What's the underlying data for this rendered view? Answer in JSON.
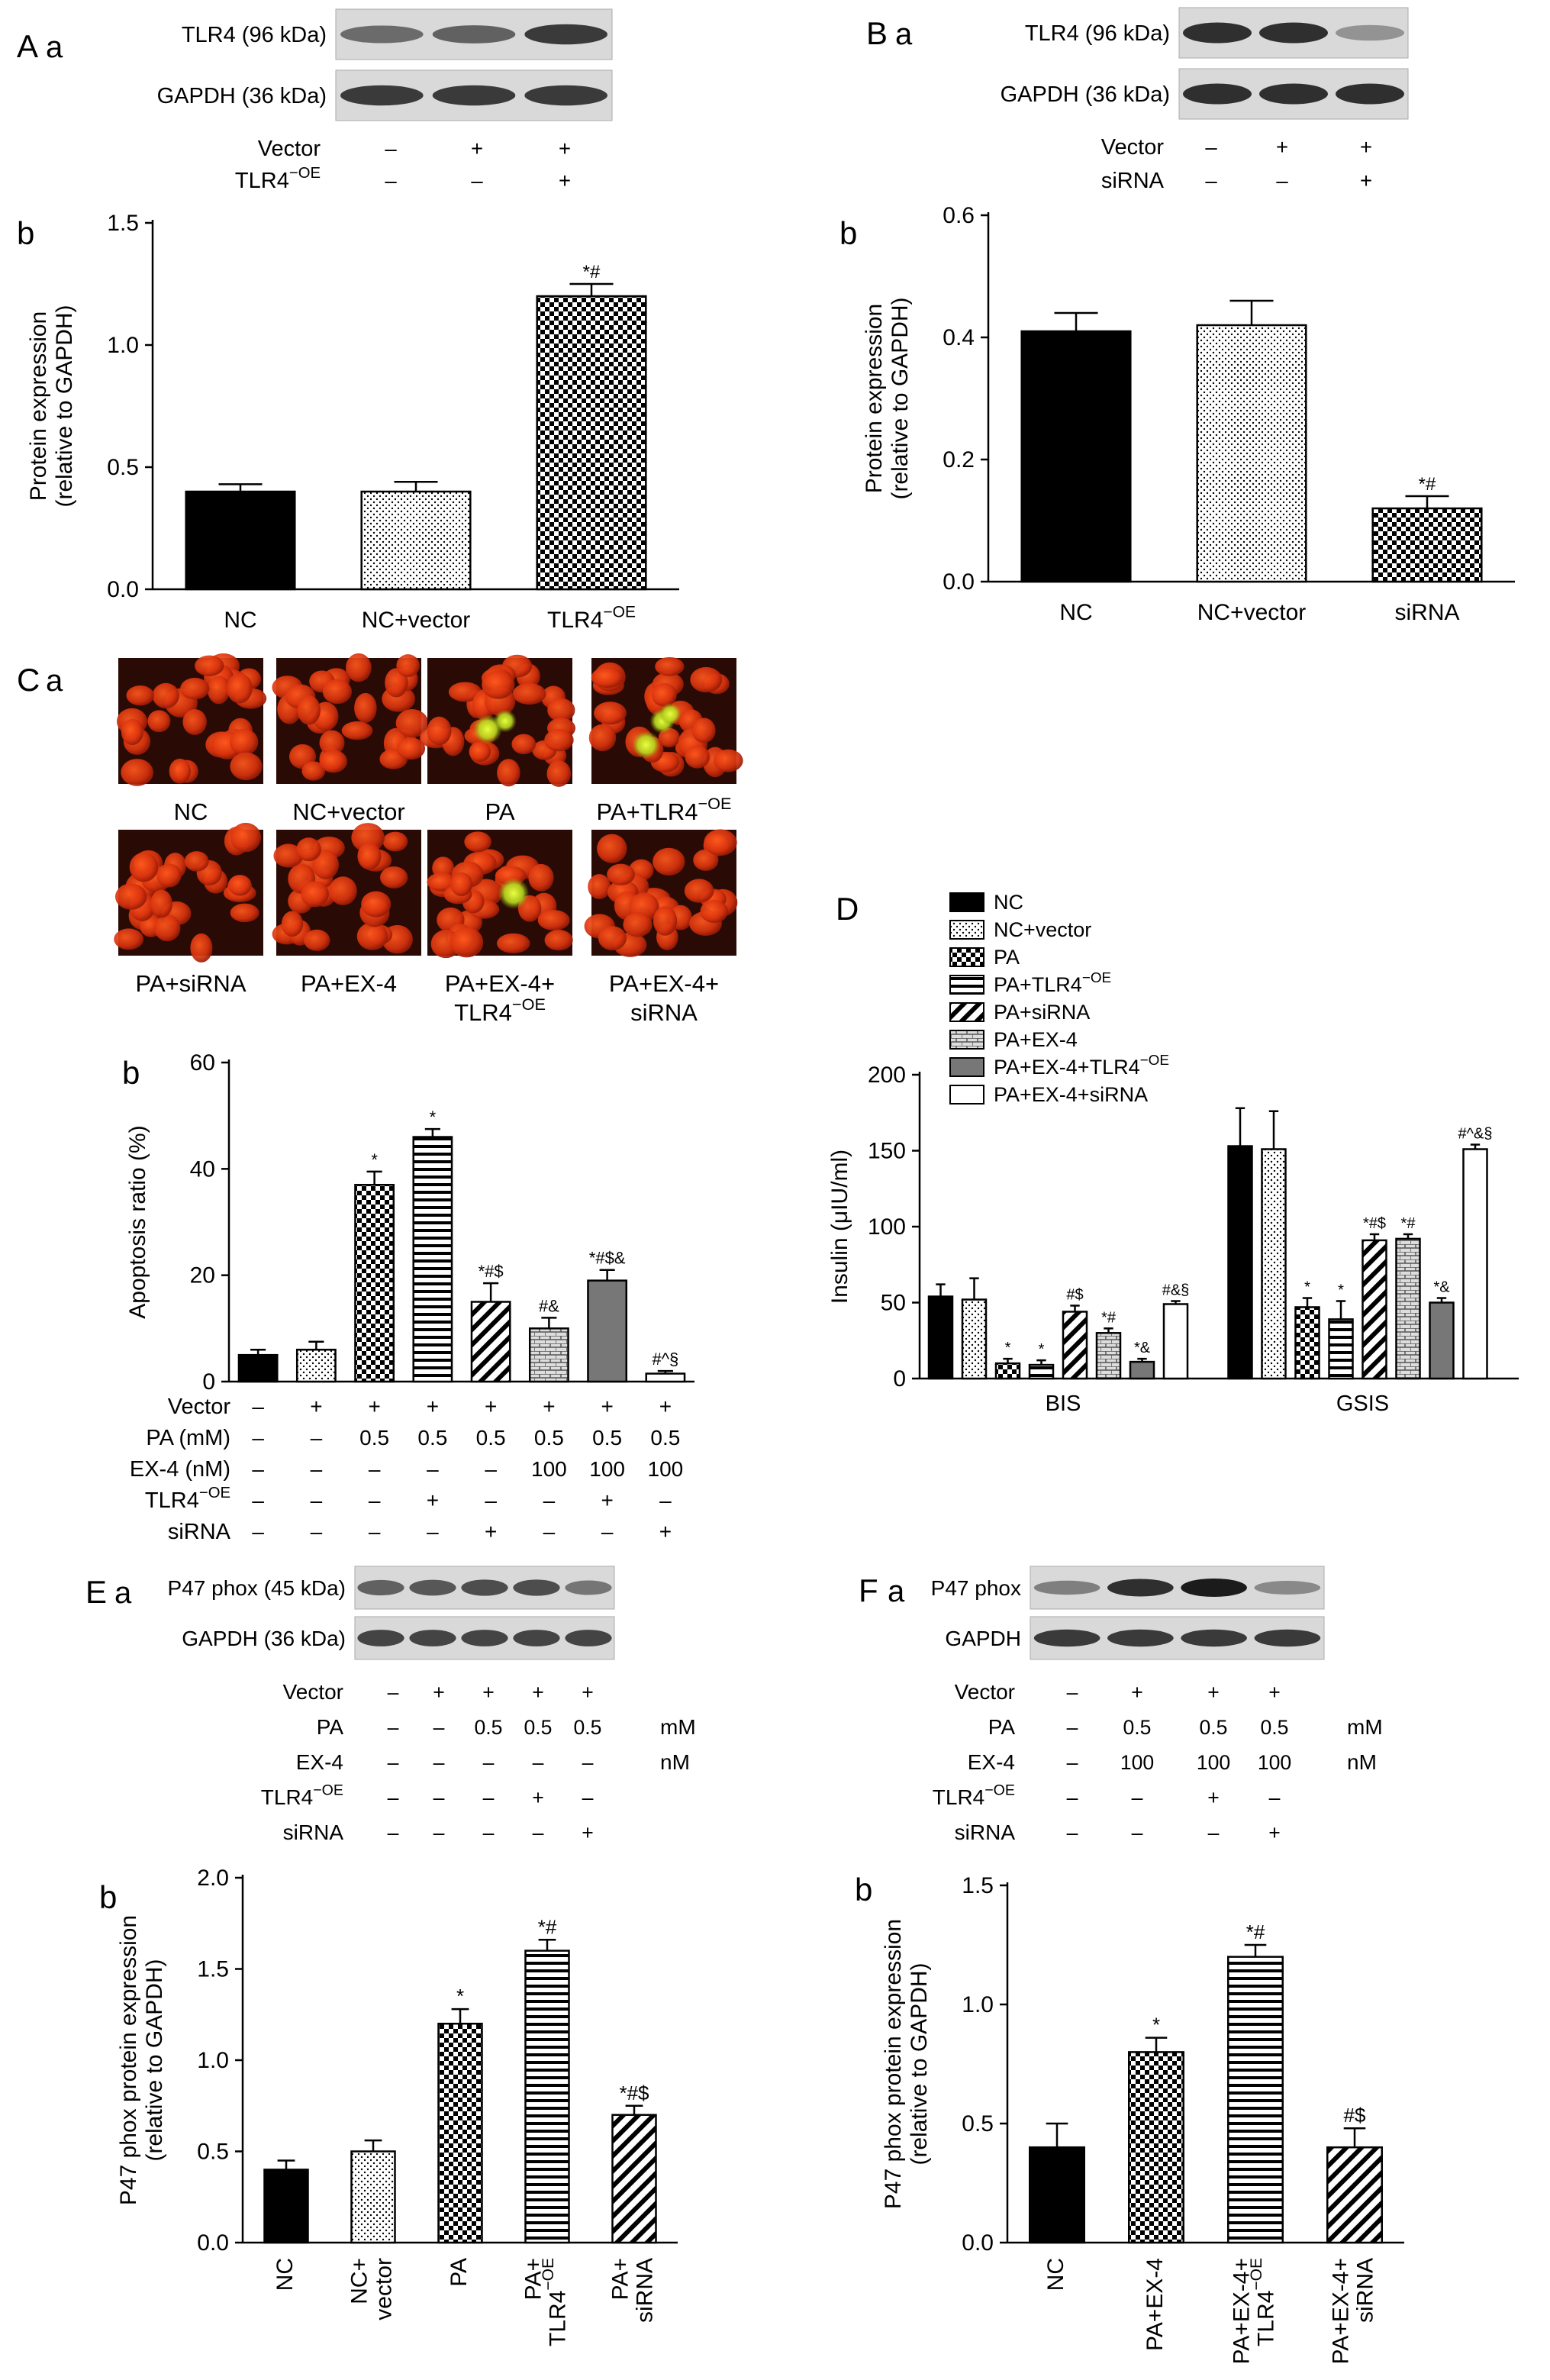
{
  "panel_labels": {
    "A": "A",
    "B": "B",
    "C": "C",
    "D": "D",
    "E": "E",
    "F": "F",
    "a": "a",
    "b": "b"
  },
  "symbols": {
    "plus": "+",
    "minus": "–",
    "sup_oe": "−OE"
  },
  "blots": {
    "A": {
      "bands": [
        {
          "label": "TLR4 (96 kDa)",
          "intensity": [
            0.55,
            0.6,
            0.8
          ]
        },
        {
          "label": "GAPDH (36 kDa)",
          "intensity": [
            0.8,
            0.8,
            0.8
          ]
        }
      ],
      "rows": [
        {
          "label": "Vector",
          "values": [
            "–",
            "+",
            "+"
          ]
        },
        {
          "label": "TLR4",
          "sup": "−OE",
          "values": [
            "–",
            "–",
            "+"
          ]
        }
      ]
    },
    "B": {
      "bands": [
        {
          "label": "TLR4 (96 kDa)",
          "intensity": [
            0.85,
            0.85,
            0.35
          ]
        },
        {
          "label": "GAPDH (36 kDa)",
          "intensity": [
            0.85,
            0.85,
            0.85
          ]
        }
      ],
      "rows": [
        {
          "label": "Vector",
          "values": [
            "–",
            "+",
            "+"
          ]
        },
        {
          "label": "siRNA",
          "values": [
            "–",
            "–",
            "+"
          ]
        }
      ]
    },
    "E": {
      "bands": [
        {
          "label": "P47 phox (45 kDa)",
          "intensity": [
            0.6,
            0.65,
            0.7,
            0.7,
            0.5
          ]
        },
        {
          "label": "GAPDH (36 kDa)",
          "intensity": [
            0.75,
            0.75,
            0.75,
            0.75,
            0.75
          ]
        }
      ],
      "rows": [
        {
          "label": "Vector",
          "values": [
            "–",
            "+",
            "+",
            "+",
            "+"
          ]
        },
        {
          "label": "PA",
          "values": [
            "–",
            "–",
            "0.5",
            "0.5",
            "0.5"
          ],
          "unit": "mM"
        },
        {
          "label": "EX-4",
          "values": [
            "–",
            "–",
            "–",
            "–",
            "–"
          ],
          "unit": "nM"
        },
        {
          "label": "TLR4",
          "sup": "−OE",
          "values": [
            "–",
            "–",
            "–",
            "+",
            "–"
          ]
        },
        {
          "label": "siRNA",
          "values": [
            "–",
            "–",
            "–",
            "–",
            "+"
          ]
        }
      ]
    },
    "F": {
      "bands": [
        {
          "label": "P47 phox",
          "intensity": [
            0.45,
            0.85,
            0.95,
            0.4
          ]
        },
        {
          "label": "GAPDH",
          "intensity": [
            0.8,
            0.8,
            0.8,
            0.8
          ]
        }
      ],
      "rows": [
        {
          "label": "Vector",
          "values": [
            "–",
            "+",
            "+",
            "+"
          ]
        },
        {
          "label": "PA",
          "values": [
            "–",
            "0.5",
            "0.5",
            "0.5"
          ],
          "unit": "mM"
        },
        {
          "label": "EX-4",
          "values": [
            "–",
            "100",
            "100",
            "100"
          ],
          "unit": "nM"
        },
        {
          "label": "TLR4",
          "sup": "−OE",
          "values": [
            "–",
            "–",
            "+",
            "–"
          ]
        },
        {
          "label": "siRNA",
          "values": [
            "–",
            "–",
            "–",
            "+"
          ]
        }
      ]
    }
  },
  "micrographs": {
    "panels": [
      {
        "label": "NC",
        "green": 0
      },
      {
        "label": "NC+vector",
        "green": 0
      },
      {
        "label": "PA",
        "green": 2
      },
      {
        "label": "PA+TLR4",
        "sup": "−OE",
        "green": 3
      },
      {
        "label": "PA+siRNA",
        "green": 0
      },
      {
        "label": "PA+EX-4",
        "green": 0
      },
      {
        "label": "PA+EX-4+",
        "label2": "TLR4",
        "sup2": "−OE",
        "green": 1
      },
      {
        "label": "PA+EX-4+",
        "label2": "siRNA",
        "green": 0
      }
    ]
  },
  "chart_data": [
    {
      "id": "Ab",
      "type": "bar",
      "ylabel": [
        "Protein expression",
        "(relative to GAPDH)"
      ],
      "ylim": [
        0,
        1.5
      ],
      "yticks": [
        "0.0",
        "0.5",
        "1.0",
        "1.5"
      ],
      "categories": [
        "NC",
        "NC+vector",
        "TLR4"
      ],
      "category_sup": [
        "",
        "",
        "−OE"
      ],
      "values": [
        0.4,
        0.4,
        1.2
      ],
      "errors": [
        0.03,
        0.04,
        0.05
      ],
      "annotations": [
        "",
        "",
        "*#"
      ],
      "patterns": [
        "black",
        "dots",
        "checker"
      ]
    },
    {
      "id": "Bb",
      "type": "bar",
      "ylabel": [
        "Protein expression",
        "(relative to GAPDH)"
      ],
      "ylim": [
        0,
        0.6
      ],
      "yticks": [
        "0.0",
        "0.2",
        "0.4",
        "0.6"
      ],
      "categories": [
        "NC",
        "NC+vector",
        "siRNA"
      ],
      "values": [
        0.41,
        0.42,
        0.12
      ],
      "errors": [
        0.03,
        0.04,
        0.02
      ],
      "annotations": [
        "",
        "",
        "*#"
      ],
      "patterns": [
        "black",
        "dots",
        "checker"
      ]
    },
    {
      "id": "Cb",
      "type": "bar",
      "ylabel": [
        "Apoptosis ratio (%)"
      ],
      "ylim": [
        0,
        60
      ],
      "yticks": [
        "0",
        "20",
        "40",
        "60"
      ],
      "values": [
        5,
        6,
        37,
        46,
        15,
        10,
        19,
        1.5
      ],
      "errors": [
        1,
        1.5,
        2.5,
        1.5,
        3.5,
        2,
        2,
        0.5
      ],
      "annotations": [
        "",
        "",
        "*",
        "*",
        "*#$",
        "#&",
        "*#$&",
        "#^§"
      ],
      "patterns": [
        "black",
        "dots",
        "checker",
        "hlines",
        "diag",
        "bricks",
        "gray",
        "white"
      ],
      "conditions": [
        {
          "label": "Vector",
          "values": [
            "–",
            "+",
            "+",
            "+",
            "+",
            "+",
            "+",
            "+"
          ]
        },
        {
          "label": "PA (mM)",
          "values": [
            "–",
            "–",
            "0.5",
            "0.5",
            "0.5",
            "0.5",
            "0.5",
            "0.5"
          ]
        },
        {
          "label": "EX-4 (nM)",
          "values": [
            "–",
            "–",
            "–",
            "–",
            "–",
            "100",
            "100",
            "100"
          ]
        },
        {
          "label": "TLR4",
          "sup": "−OE",
          "values": [
            "–",
            "–",
            "–",
            "+",
            "–",
            "–",
            "+",
            "–"
          ]
        },
        {
          "label": "siRNA",
          "values": [
            "–",
            "–",
            "–",
            "–",
            "+",
            "–",
            "–",
            "+"
          ]
        }
      ]
    },
    {
      "id": "D",
      "type": "bar",
      "ylabel": [
        "Insulin (μIU/ml)"
      ],
      "ylim": [
        0,
        200
      ],
      "yticks": [
        "0",
        "50",
        "100",
        "150",
        "200"
      ],
      "categories": [
        "BIS",
        "GSIS"
      ],
      "legend": [
        {
          "name": "NC"
        },
        {
          "name": "NC+vector"
        },
        {
          "name": "PA"
        },
        {
          "name": "PA+TLR4",
          "sup": "−OE"
        },
        {
          "name": "PA+siRNA"
        },
        {
          "name": "PA+EX-4"
        },
        {
          "name": "PA+EX-4+TLR4",
          "sup": "−OE"
        },
        {
          "name": "PA+EX-4+siRNA"
        }
      ],
      "patterns": [
        "black",
        "dots",
        "checker",
        "hlines",
        "diag",
        "bricks",
        "gray",
        "white"
      ],
      "series_values": [
        [
          54,
          153
        ],
        [
          52,
          151
        ],
        [
          10,
          47
        ],
        [
          9,
          39
        ],
        [
          44,
          91
        ],
        [
          30,
          92
        ],
        [
          11,
          50
        ],
        [
          49,
          151
        ]
      ],
      "errors": [
        [
          8,
          25
        ],
        [
          14,
          25
        ],
        [
          3,
          6
        ],
        [
          3,
          12
        ],
        [
          4,
          4
        ],
        [
          3,
          3
        ],
        [
          2,
          3
        ],
        [
          2,
          3
        ]
      ],
      "annotations": [
        [
          "",
          ""
        ],
        [
          "",
          ""
        ],
        [
          "*",
          "*"
        ],
        [
          "*",
          "*"
        ],
        [
          "#$",
          "*#$"
        ],
        [
          "*#",
          "*#"
        ],
        [
          "*&",
          "*&"
        ],
        [
          "#&§",
          "#^&§"
        ]
      ]
    },
    {
      "id": "Eb",
      "type": "bar",
      "ylabel": [
        "P47 phox protein expression",
        "(relative to GAPDH)"
      ],
      "ylim": [
        0,
        2.0
      ],
      "yticks": [
        "0.0",
        "0.5",
        "1.0",
        "1.5",
        "2.0"
      ],
      "categories": [
        [
          "NC"
        ],
        [
          "NC+",
          "vector"
        ],
        [
          "PA"
        ],
        [
          "PA+",
          "TLR4"
        ],
        [
          "PA+",
          "siRNA"
        ]
      ],
      "category_sup": [
        "",
        "",
        "",
        "−OE",
        ""
      ],
      "values": [
        0.4,
        0.5,
        1.2,
        1.6,
        0.7
      ],
      "errors": [
        0.05,
        0.06,
        0.08,
        0.06,
        0.05
      ],
      "annotations": [
        "",
        "",
        "*",
        "*#",
        "*#$"
      ],
      "patterns": [
        "black",
        "dots",
        "checker",
        "hlines",
        "diag"
      ]
    },
    {
      "id": "Fb",
      "type": "bar",
      "ylabel": [
        "P47 phox protein expression",
        "(relative to GAPDH)"
      ],
      "ylim": [
        0,
        1.5
      ],
      "yticks": [
        "0.0",
        "0.5",
        "1.0",
        "1.5"
      ],
      "categories": [
        [
          "NC"
        ],
        [
          "PA+EX-4"
        ],
        [
          "PA+EX-4+",
          "TLR4"
        ],
        [
          "PA+EX-4+",
          "siRNA"
        ]
      ],
      "category_sup": [
        "",
        "",
        "−OE",
        ""
      ],
      "values": [
        0.4,
        0.8,
        1.2,
        0.4
      ],
      "errors": [
        0.1,
        0.06,
        0.05,
        0.08
      ],
      "annotations": [
        "",
        "*",
        "*#",
        "#$"
      ],
      "patterns": [
        "black",
        "checker",
        "hlines",
        "diag"
      ]
    }
  ]
}
